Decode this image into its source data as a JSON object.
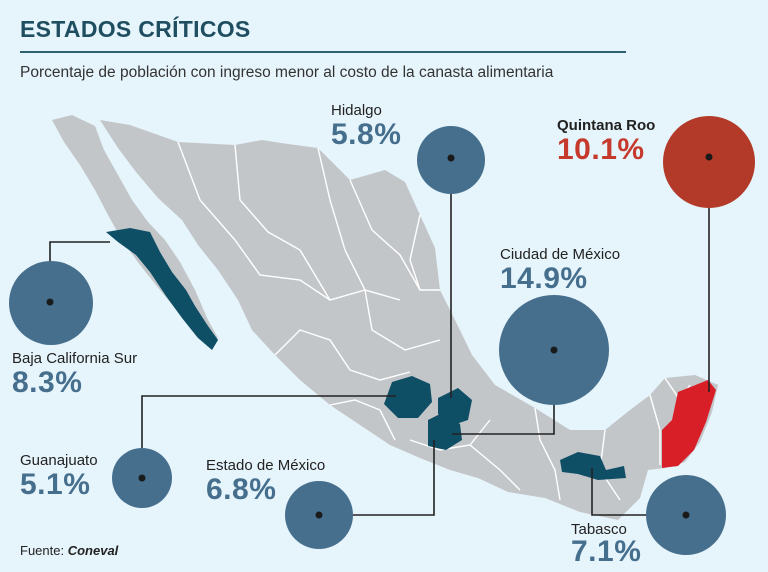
{
  "header": {
    "title": "ESTADOS CRÍTICOS",
    "subtitle": "Porcentaje de población con ingreso menor al costo de la canasta alimentaria"
  },
  "source": {
    "prefix": "Fuente:",
    "name": "Coneval"
  },
  "colors": {
    "background": "#e6f4fb",
    "land": "#c3c6c9",
    "highlight_state": "#0f4f66",
    "circle": "#466f8e",
    "max_state": "#d81e27",
    "max_circle": "#b33a28",
    "max_text": "#c53a2c"
  },
  "states": [
    {
      "name": "Hidalgo",
      "value": "5.8%",
      "pct": 5.8
    },
    {
      "name": "Quintana Roo",
      "value": "10.1%",
      "pct": 10.1,
      "highlight": true
    },
    {
      "name": "Ciudad de México",
      "value": "14.9%",
      "pct": 14.9
    },
    {
      "name": "Baja California Sur",
      "value": "8.3%",
      "pct": 8.3
    },
    {
      "name": "Guanajuato",
      "value": "5.1%",
      "pct": 5.1
    },
    {
      "name": "Estado de México",
      "value": "6.8%",
      "pct": 6.8
    },
    {
      "name": "Tabasco",
      "value": "7.1%",
      "pct": 7.1
    }
  ]
}
